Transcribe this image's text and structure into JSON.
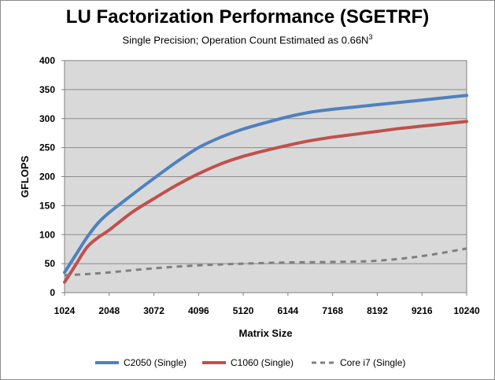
{
  "chart_data": {
    "type": "line",
    "title": "LU Factorization Performance (SGETRF)",
    "subtitle_main": "Single Precision;  Operation Count Estimated as 0.66N",
    "subtitle_sup": "3",
    "xlabel": "Matrix Size",
    "ylabel": "GFLOPS",
    "ylim": [
      0,
      400
    ],
    "yticks": [
      "0",
      "50",
      "100",
      "150",
      "200",
      "250",
      "300",
      "350",
      "400"
    ],
    "xlim": [
      1024,
      10240
    ],
    "xticks": [
      "1024",
      "2048",
      "3072",
      "4096",
      "5120",
      "6144",
      "7168",
      "8192",
      "9216",
      "10240"
    ],
    "grid": "horizontal",
    "legend_position": "bottom",
    "plot_background": "#d9d9d9",
    "series": [
      {
        "name": "C2050 (Single)",
        "color": "#4f81bd",
        "dash": "solid",
        "x": [
          1024,
          1280,
          1536,
          1792,
          2048,
          2560,
          3072,
          3584,
          4096,
          4608,
          5120,
          5632,
          6144,
          6656,
          7168,
          7680,
          8192,
          8704,
          9216,
          9728,
          10240
        ],
        "y": [
          35,
          65,
          95,
          120,
          138,
          168,
          197,
          225,
          250,
          268,
          282,
          293,
          303,
          311,
          316,
          320,
          324,
          328,
          332,
          336,
          340
        ]
      },
      {
        "name": "C1060 (Single)",
        "color": "#c0504d",
        "dash": "solid",
        "x": [
          1024,
          1280,
          1536,
          1792,
          2048,
          2560,
          3072,
          3584,
          4096,
          4608,
          5120,
          5632,
          6144,
          6656,
          7168,
          7680,
          8192,
          8704,
          9216,
          9728,
          10240
        ],
        "y": [
          18,
          48,
          78,
          95,
          108,
          138,
          162,
          185,
          205,
          222,
          235,
          245,
          254,
          262,
          268,
          273,
          278,
          283,
          287,
          291,
          295
        ]
      },
      {
        "name": "Core i7 (Single)",
        "color": "#7f7f7f",
        "dash": "dashed",
        "x": [
          1024,
          1536,
          2048,
          3072,
          4096,
          5120,
          6144,
          7168,
          8192,
          9216,
          10240
        ],
        "y": [
          30,
          32,
          35,
          42,
          47,
          50,
          52,
          53,
          55,
          63,
          76
        ]
      }
    ]
  }
}
